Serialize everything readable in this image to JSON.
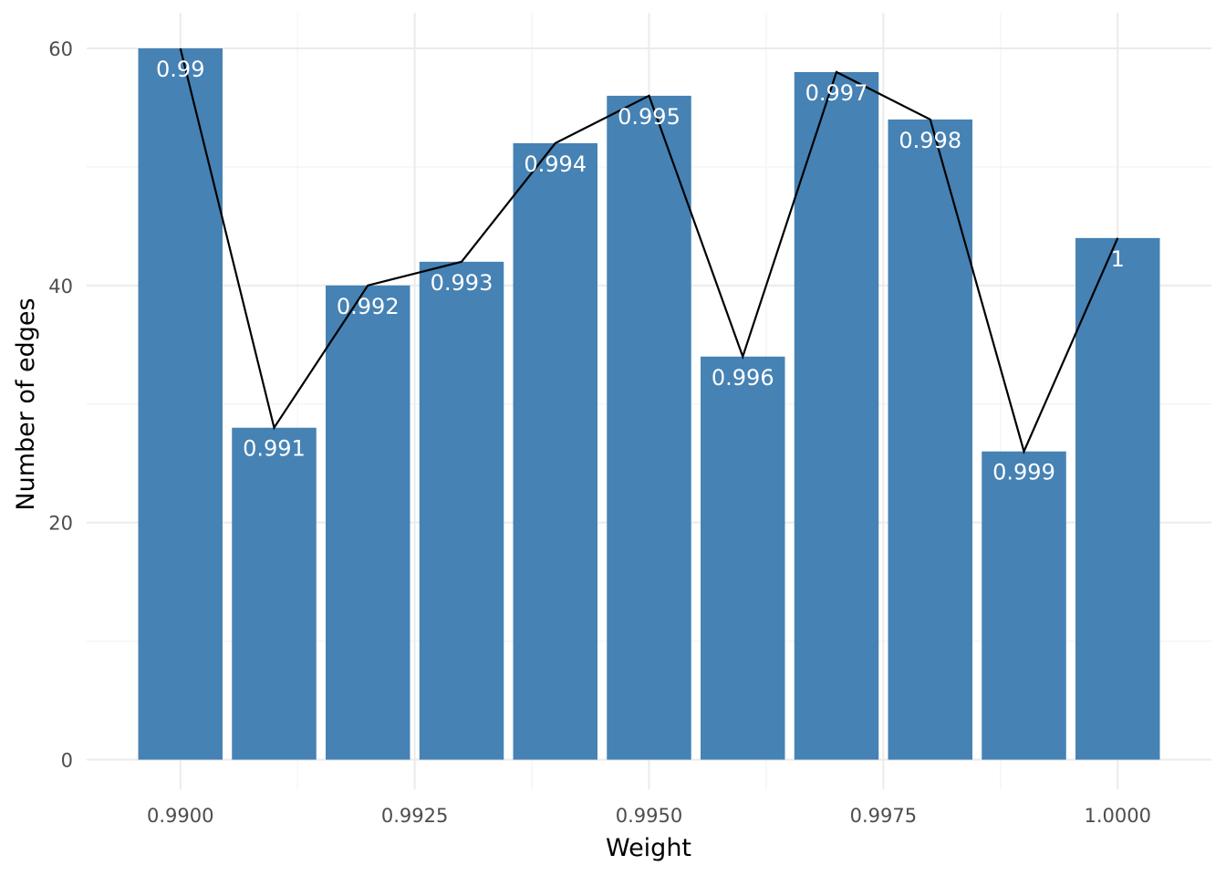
{
  "chart_data": {
    "type": "bar",
    "xlabel": "Weight",
    "ylabel": "Number of edges",
    "x": [
      0.99,
      0.991,
      0.992,
      0.993,
      0.994,
      0.995,
      0.996,
      0.997,
      0.998,
      0.999,
      1.0
    ],
    "values": [
      60,
      28,
      40,
      42,
      52,
      56,
      34,
      58,
      54,
      26,
      44
    ],
    "bar_labels": [
      "0.99",
      "0.991",
      "0.992",
      "0.993",
      "0.994",
      "0.995",
      "0.996",
      "0.997",
      "0.998",
      "0.999",
      "1"
    ],
    "overlay": {
      "type": "line",
      "color": "#000000"
    },
    "xticks": [
      0.99,
      0.9925,
      0.995,
      0.9975,
      1.0
    ],
    "xtick_labels": [
      "0.9900",
      "0.9925",
      "0.9950",
      "0.9975",
      "1.0000"
    ],
    "yticks": [
      0,
      20,
      40,
      60
    ],
    "ytick_labels": [
      "0",
      "20",
      "40",
      "60"
    ],
    "xlim": [
      0.989,
      1.001
    ],
    "ylim": [
      -2.5,
      63
    ],
    "bar_color": "#4682b4",
    "grid": true,
    "legend": "none"
  }
}
